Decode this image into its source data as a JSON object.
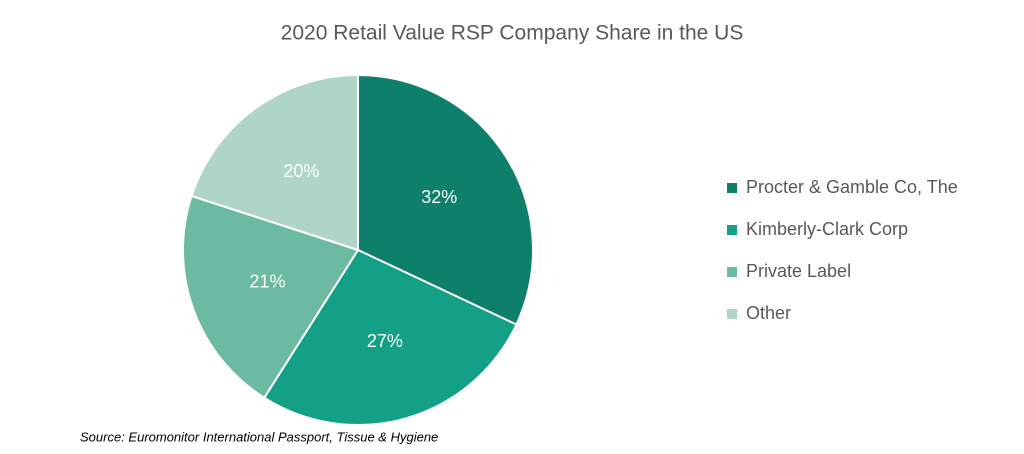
{
  "chart_data": {
    "type": "pie",
    "title": "2020 Retail Value RSP Company Share in the US",
    "categories": [
      "Procter & Gamble Co, The",
      "Kimberly-Clark Corp",
      "Private Label",
      "Other"
    ],
    "values": [
      32,
      27,
      21,
      20
    ],
    "value_labels": [
      "32%",
      "27%",
      "21%",
      "20%"
    ],
    "colors": [
      "#0e7f6a",
      "#13a086",
      "#6cbaa1",
      "#aed5c7"
    ],
    "legend": "right",
    "source": "Source:  Euromonitor International  Passport, Tissue & Hygiene"
  }
}
